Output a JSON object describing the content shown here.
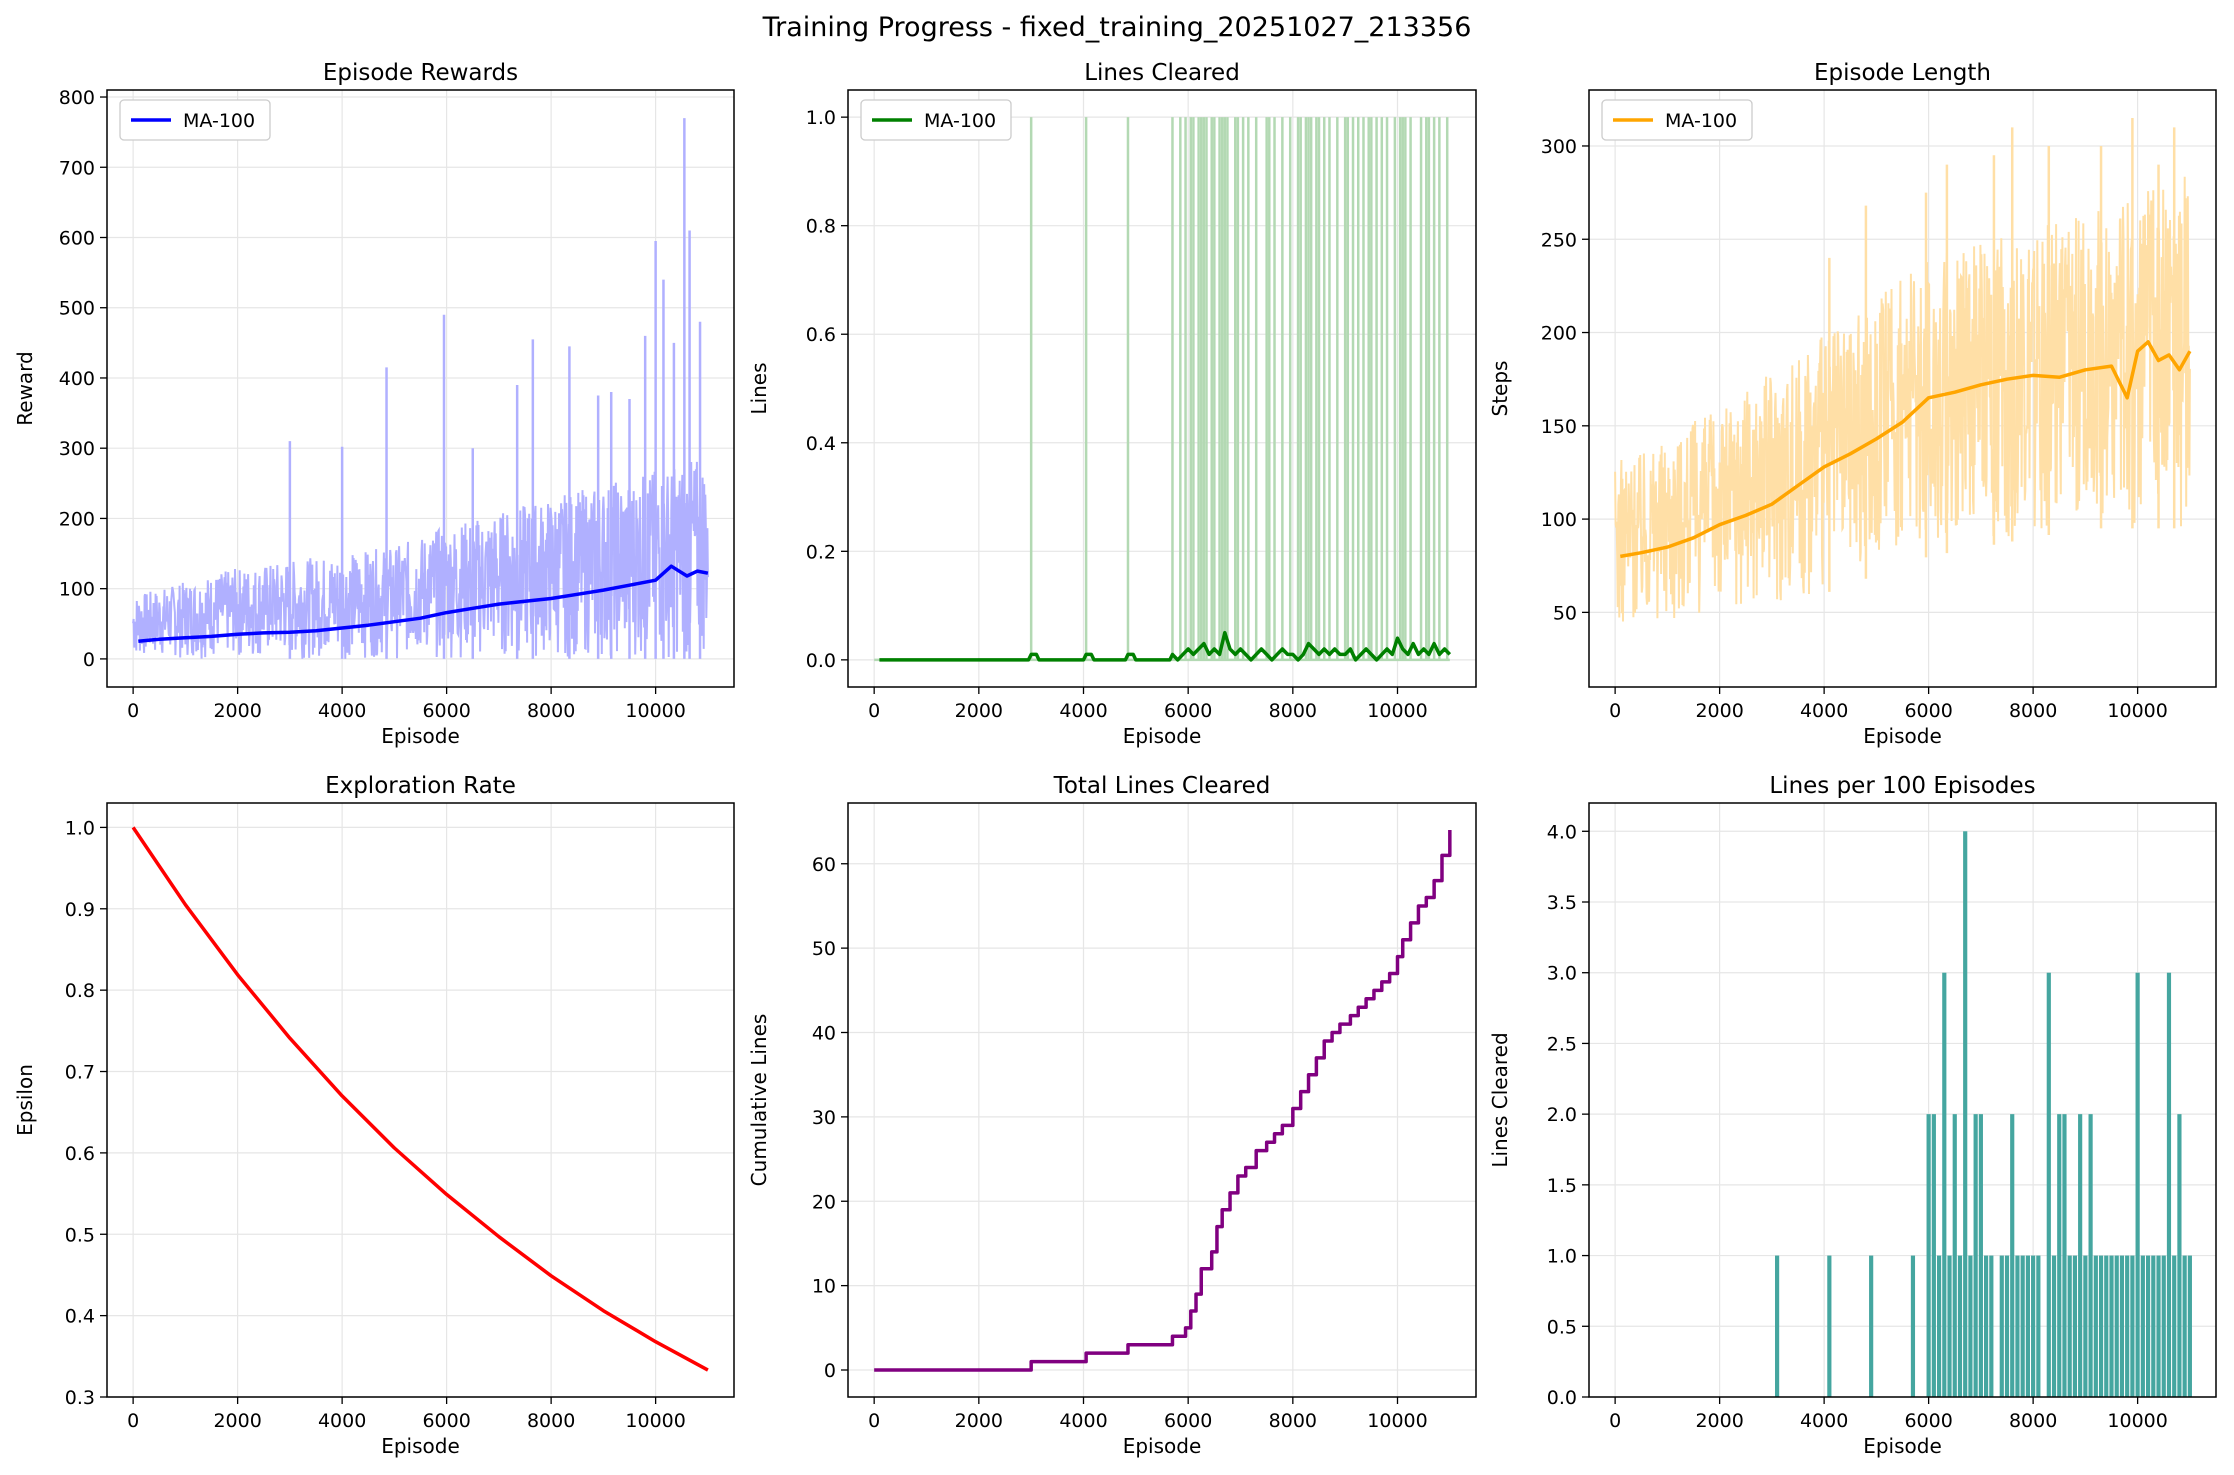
{
  "figure": {
    "title": "Training Progress - fixed_training_20251027_213356"
  },
  "chart_data": [
    {
      "id": "rewards",
      "type": "line",
      "title": "Episode Rewards",
      "xlabel": "Episode",
      "ylabel": "Reward",
      "xlim": [
        -500,
        11500
      ],
      "ylim": [
        -40,
        810
      ],
      "xticks": [
        0,
        2000,
        4000,
        6000,
        8000,
        10000
      ],
      "yticks": [
        0,
        100,
        200,
        300,
        400,
        500,
        600,
        700,
        800
      ],
      "grid": true,
      "legend": {
        "position": "top-left",
        "entries": [
          "MA-100"
        ]
      },
      "colors": {
        "raw": "#b0b0ff",
        "ma": "#0000ff"
      },
      "raw_envelope": {
        "x": [
          0,
          1000,
          2000,
          3000,
          4000,
          5000,
          6000,
          7000,
          8000,
          9000,
          10000,
          11000
        ],
        "low": [
          0,
          0,
          0,
          0,
          0,
          0,
          0,
          0,
          0,
          0,
          0,
          0
        ],
        "high": [
          90,
          110,
          130,
          140,
          150,
          160,
          190,
          210,
          230,
          250,
          270,
          290
        ]
      },
      "raw_spikes": [
        {
          "x": 3000,
          "y": 310
        },
        {
          "x": 4000,
          "y": 302
        },
        {
          "x": 4850,
          "y": 415
        },
        {
          "x": 5950,
          "y": 490
        },
        {
          "x": 6500,
          "y": 300
        },
        {
          "x": 7350,
          "y": 390
        },
        {
          "x": 7650,
          "y": 455
        },
        {
          "x": 8350,
          "y": 445
        },
        {
          "x": 8900,
          "y": 375
        },
        {
          "x": 9150,
          "y": 380
        },
        {
          "x": 9500,
          "y": 370
        },
        {
          "x": 9800,
          "y": 460
        },
        {
          "x": 10000,
          "y": 595
        },
        {
          "x": 10150,
          "y": 540
        },
        {
          "x": 10350,
          "y": 450
        },
        {
          "x": 10550,
          "y": 770
        },
        {
          "x": 10650,
          "y": 610
        },
        {
          "x": 10850,
          "y": 480
        }
      ],
      "series": [
        {
          "name": "MA-100",
          "x": [
            100,
            500,
            1000,
            1500,
            2000,
            2500,
            3000,
            3500,
            4000,
            4500,
            5000,
            5500,
            6000,
            6500,
            7000,
            7500,
            8000,
            8500,
            9000,
            9500,
            10000,
            10300,
            10600,
            10800,
            11000
          ],
          "values": [
            25,
            28,
            30,
            32,
            35,
            37,
            38,
            40,
            44,
            48,
            53,
            58,
            66,
            72,
            78,
            82,
            86,
            92,
            98,
            105,
            112,
            132,
            118,
            125,
            122
          ]
        }
      ]
    },
    {
      "id": "lines",
      "type": "line",
      "title": "Lines Cleared",
      "xlabel": "Episode",
      "ylabel": "Lines",
      "xlim": [
        -500,
        11500
      ],
      "ylim": [
        -0.05,
        1.05
      ],
      "xticks": [
        0,
        2000,
        4000,
        6000,
        8000,
        10000
      ],
      "yticks": [
        0.0,
        0.2,
        0.4,
        0.6,
        0.8,
        1.0
      ],
      "grid": true,
      "legend": {
        "position": "top-left",
        "entries": [
          "MA-100"
        ]
      },
      "colors": {
        "raw": "#b3d9b3",
        "ma": "#008000"
      },
      "raw_events_x": [
        3000,
        4050,
        4850,
        5700,
        5850,
        5950,
        6050,
        6100,
        6200,
        6250,
        6300,
        6350,
        6450,
        6500,
        6600,
        6650,
        6700,
        6750,
        6900,
        6950,
        7050,
        7150,
        7300,
        7500,
        7550,
        7650,
        7800,
        7950,
        8100,
        8150,
        8250,
        8300,
        8350,
        8450,
        8500,
        8600,
        8700,
        8850,
        9000,
        9050,
        9150,
        9250,
        9350,
        9450,
        9500,
        9600,
        9700,
        9800,
        9950,
        10050,
        10100,
        10150,
        10250,
        10450,
        10550,
        10600,
        10700,
        10800,
        10950
      ],
      "series": [
        {
          "name": "MA-100",
          "x": [
            100,
            2950,
            3000,
            3100,
            3150,
            4000,
            4050,
            4150,
            4200,
            4800,
            4850,
            4950,
            5000,
            5650,
            5700,
            5800,
            5900,
            6000,
            6100,
            6200,
            6300,
            6400,
            6500,
            6600,
            6700,
            6800,
            6900,
            7000,
            7100,
            7200,
            7300,
            7400,
            7500,
            7600,
            7700,
            7800,
            7900,
            8000,
            8100,
            8200,
            8300,
            8400,
            8500,
            8600,
            8700,
            8800,
            8900,
            9000,
            9100,
            9200,
            9300,
            9400,
            9500,
            9600,
            9700,
            9800,
            9900,
            10000,
            10100,
            10200,
            10300,
            10400,
            10500,
            10600,
            10700,
            10800,
            10900,
            11000
          ],
          "values": [
            0.0,
            0.0,
            0.01,
            0.01,
            0.0,
            0.0,
            0.01,
            0.01,
            0.0,
            0.0,
            0.01,
            0.01,
            0.0,
            0.0,
            0.01,
            0.0,
            0.01,
            0.02,
            0.01,
            0.02,
            0.03,
            0.01,
            0.02,
            0.01,
            0.05,
            0.02,
            0.01,
            0.02,
            0.01,
            0.0,
            0.01,
            0.02,
            0.01,
            0.0,
            0.01,
            0.02,
            0.01,
            0.01,
            0.0,
            0.01,
            0.03,
            0.02,
            0.01,
            0.02,
            0.01,
            0.02,
            0.01,
            0.01,
            0.02,
            0.0,
            0.01,
            0.02,
            0.01,
            0.0,
            0.01,
            0.02,
            0.01,
            0.04,
            0.02,
            0.01,
            0.03,
            0.01,
            0.02,
            0.01,
            0.03,
            0.01,
            0.02,
            0.01
          ]
        }
      ]
    },
    {
      "id": "length",
      "type": "line",
      "title": "Episode Length",
      "xlabel": "Episode",
      "ylabel": "Steps",
      "xlim": [
        -500,
        11500
      ],
      "ylim": [
        10,
        330
      ],
      "xticks": [
        0,
        2000,
        4000,
        6000,
        8000,
        10000
      ],
      "yticks": [
        50,
        100,
        150,
        200,
        250,
        300
      ],
      "grid": true,
      "legend": {
        "position": "top-left",
        "entries": [
          "MA-100"
        ]
      },
      "colors": {
        "raw": "#ffdfa6",
        "ma": "#ffa500"
      },
      "raw_envelope": {
        "x": [
          0,
          1000,
          2000,
          3000,
          4000,
          5000,
          6000,
          7000,
          8000,
          9000,
          10000,
          11000
        ],
        "low": [
          40,
          45,
          50,
          55,
          60,
          70,
          80,
          85,
          90,
          95,
          95,
          95
        ],
        "high": [
          130,
          145,
          160,
          180,
          200,
          220,
          240,
          250,
          255,
          265,
          275,
          285
        ]
      },
      "raw_spikes": [
        {
          "x": 4100,
          "y": 240
        },
        {
          "x": 4800,
          "y": 268
        },
        {
          "x": 5950,
          "y": 275
        },
        {
          "x": 6350,
          "y": 290
        },
        {
          "x": 7250,
          "y": 295
        },
        {
          "x": 7600,
          "y": 310
        },
        {
          "x": 8300,
          "y": 300
        },
        {
          "x": 9300,
          "y": 300
        },
        {
          "x": 9900,
          "y": 315
        },
        {
          "x": 10400,
          "y": 290
        },
        {
          "x": 10700,
          "y": 310
        }
      ],
      "series": [
        {
          "name": "MA-100",
          "x": [
            100,
            500,
            1000,
            1500,
            2000,
            2500,
            3000,
            3500,
            4000,
            4500,
            5000,
            5500,
            6000,
            6500,
            7000,
            7500,
            8000,
            8500,
            9000,
            9500,
            9800,
            10000,
            10200,
            10400,
            10600,
            10800,
            11000
          ],
          "values": [
            80,
            82,
            85,
            90,
            97,
            102,
            108,
            118,
            128,
            135,
            143,
            152,
            165,
            168,
            172,
            175,
            177,
            176,
            180,
            182,
            165,
            190,
            195,
            185,
            188,
            180,
            190
          ]
        }
      ]
    },
    {
      "id": "epsilon",
      "type": "line",
      "title": "Exploration Rate",
      "xlabel": "Episode",
      "ylabel": "Epsilon",
      "xlim": [
        -500,
        11500
      ],
      "ylim": [
        0.3,
        1.03
      ],
      "xticks": [
        0,
        2000,
        4000,
        6000,
        8000,
        10000
      ],
      "yticks": [
        0.3,
        0.4,
        0.5,
        0.6,
        0.7,
        0.8,
        0.9,
        1.0
      ],
      "grid": true,
      "colors": {
        "line": "#ff0000"
      },
      "series": [
        {
          "x": [
            0,
            1000,
            2000,
            3000,
            4000,
            5000,
            6000,
            7000,
            8000,
            9000,
            10000,
            11000
          ],
          "values": [
            1.0,
            0.905,
            0.819,
            0.741,
            0.67,
            0.606,
            0.549,
            0.497,
            0.449,
            0.406,
            0.368,
            0.333
          ]
        }
      ]
    },
    {
      "id": "cumulative",
      "type": "line",
      "title": "Total Lines Cleared",
      "xlabel": "Episode",
      "ylabel": "Cumulative Lines",
      "xlim": [
        -500,
        11500
      ],
      "ylim": [
        -3.2,
        67.2
      ],
      "xticks": [
        0,
        2000,
        4000,
        6000,
        8000,
        10000
      ],
      "yticks": [
        0,
        10,
        20,
        30,
        40,
        50,
        60
      ],
      "grid": true,
      "colors": {
        "line": "#800080"
      },
      "series": [
        {
          "x": [
            0,
            3000,
            4050,
            4850,
            5700,
            5950,
            6050,
            6150,
            6250,
            6450,
            6550,
            6650,
            6800,
            6950,
            7100,
            7300,
            7500,
            7650,
            7800,
            8000,
            8150,
            8300,
            8450,
            8600,
            8750,
            8900,
            9100,
            9250,
            9400,
            9550,
            9700,
            9850,
            10000,
            10100,
            10250,
            10400,
            10550,
            10700,
            10850,
            11000
          ],
          "values": [
            0,
            1,
            2,
            3,
            4,
            5,
            7,
            9,
            12,
            14,
            17,
            19,
            21,
            23,
            24,
            26,
            27,
            28,
            29,
            31,
            33,
            35,
            37,
            39,
            40,
            41,
            42,
            43,
            44,
            45,
            46,
            47,
            49,
            51,
            53,
            55,
            56,
            58,
            61,
            64
          ]
        }
      ]
    },
    {
      "id": "per100",
      "type": "bar",
      "title": "Lines per 100 Episodes",
      "xlabel": "Episode",
      "ylabel": "Lines Cleared",
      "xlim": [
        -500,
        11500
      ],
      "ylim": [
        0,
        4.2
      ],
      "xticks": [
        0,
        2000,
        4000,
        6000,
        8000,
        10000
      ],
      "yticks": [
        0.0,
        0.5,
        1.0,
        1.5,
        2.0,
        2.5,
        3.0,
        3.5,
        4.0
      ],
      "grid": true,
      "colors": {
        "bar": "#45a6a0"
      },
      "bars": [
        {
          "x": 3100,
          "y": 1
        },
        {
          "x": 4100,
          "y": 1
        },
        {
          "x": 4900,
          "y": 1
        },
        {
          "x": 5700,
          "y": 1
        },
        {
          "x": 6000,
          "y": 2
        },
        {
          "x": 6100,
          "y": 2
        },
        {
          "x": 6200,
          "y": 1
        },
        {
          "x": 6300,
          "y": 3
        },
        {
          "x": 6400,
          "y": 1
        },
        {
          "x": 6500,
          "y": 2
        },
        {
          "x": 6600,
          "y": 1
        },
        {
          "x": 6700,
          "y": 4
        },
        {
          "x": 6800,
          "y": 1
        },
        {
          "x": 6900,
          "y": 2
        },
        {
          "x": 7000,
          "y": 2
        },
        {
          "x": 7100,
          "y": 1
        },
        {
          "x": 7200,
          "y": 1
        },
        {
          "x": 7400,
          "y": 1
        },
        {
          "x": 7500,
          "y": 1
        },
        {
          "x": 7600,
          "y": 2
        },
        {
          "x": 7700,
          "y": 1
        },
        {
          "x": 7800,
          "y": 1
        },
        {
          "x": 7900,
          "y": 1
        },
        {
          "x": 8000,
          "y": 1
        },
        {
          "x": 8100,
          "y": 1
        },
        {
          "x": 8300,
          "y": 3
        },
        {
          "x": 8400,
          "y": 1
        },
        {
          "x": 8500,
          "y": 2
        },
        {
          "x": 8600,
          "y": 2
        },
        {
          "x": 8700,
          "y": 1
        },
        {
          "x": 8800,
          "y": 1
        },
        {
          "x": 8900,
          "y": 2
        },
        {
          "x": 9000,
          "y": 1
        },
        {
          "x": 9100,
          "y": 2
        },
        {
          "x": 9200,
          "y": 1
        },
        {
          "x": 9300,
          "y": 1
        },
        {
          "x": 9400,
          "y": 1
        },
        {
          "x": 9500,
          "y": 1
        },
        {
          "x": 9600,
          "y": 1
        },
        {
          "x": 9700,
          "y": 1
        },
        {
          "x": 9800,
          "y": 1
        },
        {
          "x": 9900,
          "y": 1
        },
        {
          "x": 10000,
          "y": 3
        },
        {
          "x": 10100,
          "y": 1
        },
        {
          "x": 10200,
          "y": 1
        },
        {
          "x": 10300,
          "y": 1
        },
        {
          "x": 10400,
          "y": 1
        },
        {
          "x": 10500,
          "y": 1
        },
        {
          "x": 10600,
          "y": 3
        },
        {
          "x": 10700,
          "y": 1
        },
        {
          "x": 10800,
          "y": 2
        },
        {
          "x": 10900,
          "y": 1
        },
        {
          "x": 11000,
          "y": 1
        }
      ]
    }
  ]
}
